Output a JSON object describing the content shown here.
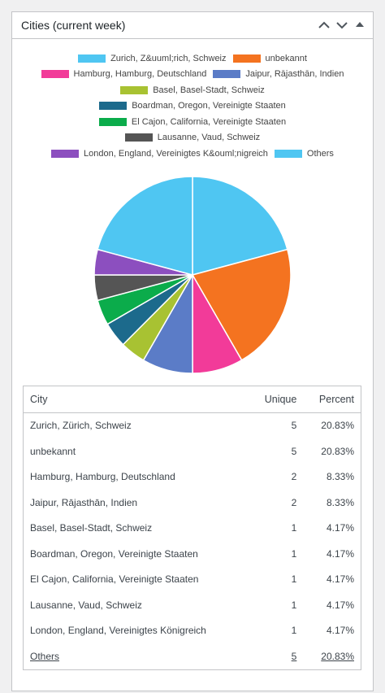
{
  "header": {
    "title": "Cities (current week)"
  },
  "chart_data": {
    "type": "pie",
    "categories": [
      "Zurich, Z&uuml;rich, Schweiz",
      "unbekannt",
      "Hamburg, Hamburg, Deutschland",
      "Jaipur, Rājasthān, Indien",
      "Basel, Basel-Stadt, Schweiz",
      "Boardman, Oregon, Vereinigte Staaten",
      "El Cajon, California, Vereinigte Staaten",
      "Lausanne, Vaud, Schweiz",
      "London, England, Vereinigtes K&ouml;nigreich",
      "Others"
    ],
    "values": [
      20.83,
      20.83,
      8.33,
      8.33,
      4.17,
      4.17,
      4.17,
      4.17,
      4.17,
      20.83
    ],
    "colors": [
      "#4fc6f2",
      "#f47320",
      "#f23b99",
      "#5b7cc7",
      "#a8c232",
      "#1c6a8c",
      "#0bac4b",
      "#555555",
      "#8c4fbf",
      "#4fc6f2"
    ]
  },
  "table": {
    "columns": [
      "City",
      "Unique",
      "Percent"
    ],
    "rows": [
      [
        "Zurich, Zürich, Schweiz",
        "5",
        "20.83%"
      ],
      [
        "unbekannt",
        "5",
        "20.83%"
      ],
      [
        "Hamburg, Hamburg, Deutschland",
        "2",
        "8.33%"
      ],
      [
        "Jaipur, Rājasthān, Indien",
        "2",
        "8.33%"
      ],
      [
        "Basel, Basel-Stadt, Schweiz",
        "1",
        "4.17%"
      ],
      [
        "Boardman, Oregon, Vereinigte Staaten",
        "1",
        "4.17%"
      ],
      [
        "El Cajon, California, Vereinigte Staaten",
        "1",
        "4.17%"
      ],
      [
        "Lausanne, Vaud, Schweiz",
        "1",
        "4.17%"
      ],
      [
        "London, England, Vereinigtes Königreich",
        "1",
        "4.17%"
      ],
      [
        "Others",
        "5",
        "20.83%"
      ]
    ]
  }
}
